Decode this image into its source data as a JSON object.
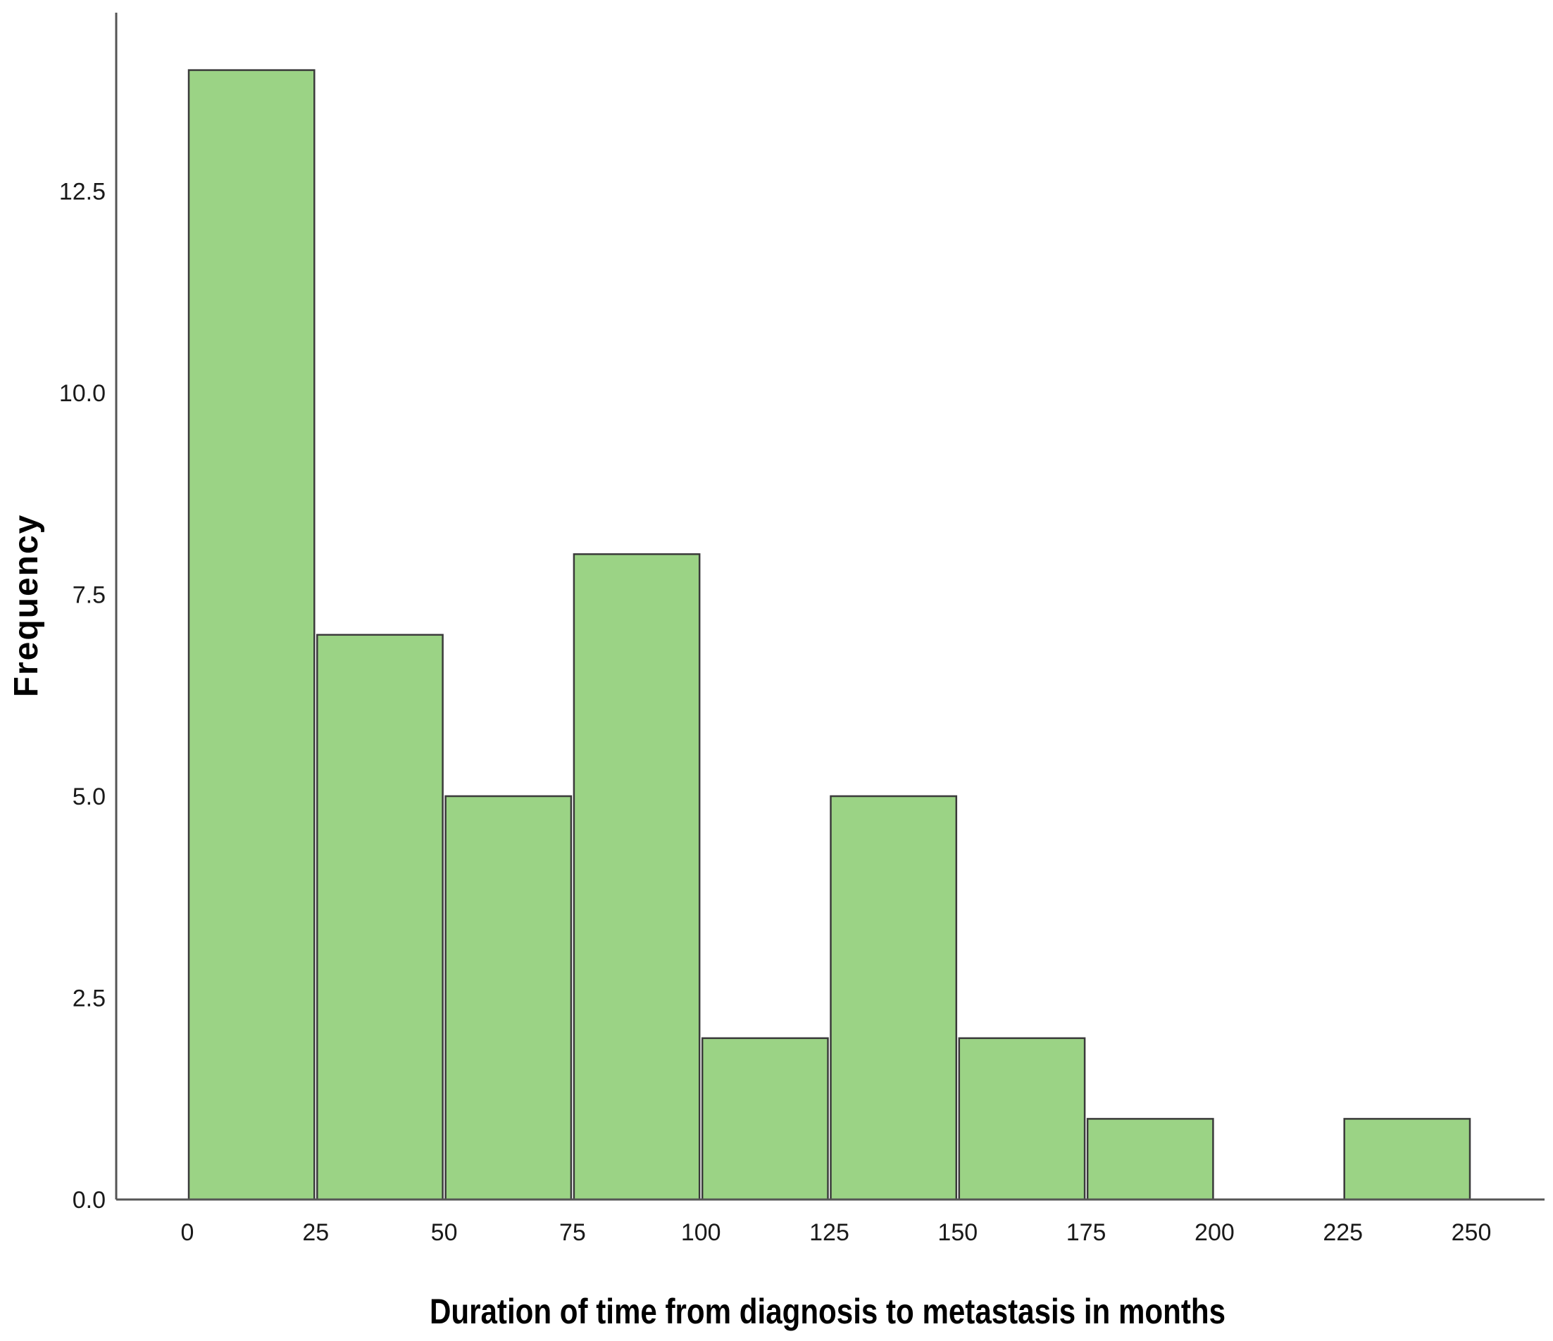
{
  "chart_data": {
    "type": "bar",
    "bins": [
      {
        "start": 0,
        "end": 25,
        "value": 14
      },
      {
        "start": 25,
        "end": 50,
        "value": 7
      },
      {
        "start": 50,
        "end": 75,
        "value": 5
      },
      {
        "start": 75,
        "end": 100,
        "value": 8
      },
      {
        "start": 100,
        "end": 125,
        "value": 2
      },
      {
        "start": 125,
        "end": 150,
        "value": 5
      },
      {
        "start": 150,
        "end": 175,
        "value": 2
      },
      {
        "start": 175,
        "end": 200,
        "value": 1
      },
      {
        "start": 200,
        "end": 225,
        "value": 0
      },
      {
        "start": 225,
        "end": 250,
        "value": 1
      }
    ],
    "xlabel": "Duration of time from diagnosis to metastasis in months",
    "ylabel": "Frequency",
    "xticks": [
      "0",
      "25",
      "50",
      "75",
      "100",
      "125",
      "150",
      "175",
      "200",
      "225",
      "250"
    ],
    "yticks": [
      "0.0",
      "2.5",
      "5.0",
      "7.5",
      "10.0",
      "12.5"
    ],
    "xlim": [
      0,
      250
    ],
    "ylim": [
      0,
      14
    ],
    "grid": false,
    "colors": {
      "bar_fill": "#9bd385",
      "bar_stroke": "#3a3a3a",
      "axis": "#555555"
    }
  }
}
